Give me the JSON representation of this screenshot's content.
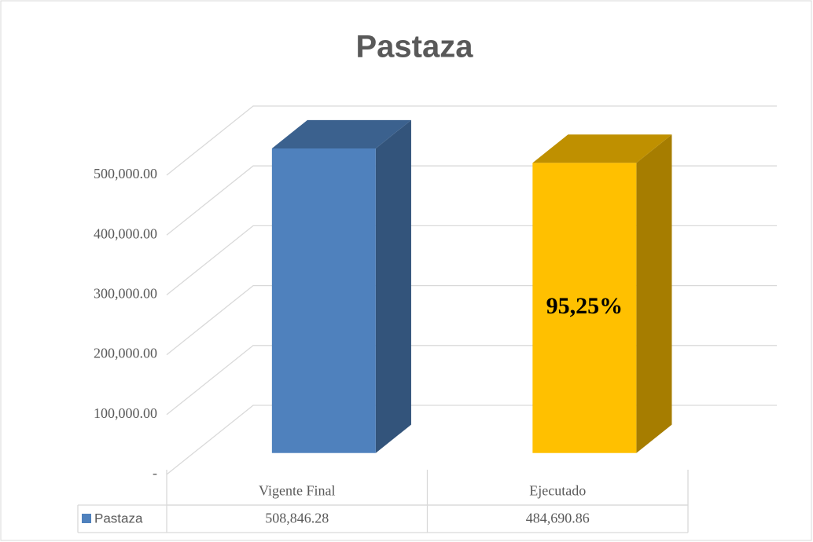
{
  "chart_data": {
    "type": "bar3d",
    "title": "Pastaza",
    "categories": [
      "Vigente Final",
      "Ejecutado"
    ],
    "series": [
      {
        "name": "Pastaza",
        "colors": [
          "#4f81bd",
          "#ffc000"
        ],
        "legend_color": "#4f81bd",
        "values": [
          508846.28,
          484690.86
        ],
        "value_labels": [
          "508,846.28",
          "484,690.86"
        ]
      }
    ],
    "annotation": "95,25%",
    "ylim": [
      0,
      500000
    ],
    "yticks": [
      {
        "value": 0,
        "label": "-"
      },
      {
        "value": 100000,
        "label": "100,000.00"
      },
      {
        "value": 200000,
        "label": "200,000.00"
      },
      {
        "value": 300000,
        "label": "300,000.00"
      },
      {
        "value": 400000,
        "label": "400,000.00"
      },
      {
        "value": 500000,
        "label": "500,000.00"
      }
    ],
    "grid": true,
    "data_table": true
  }
}
